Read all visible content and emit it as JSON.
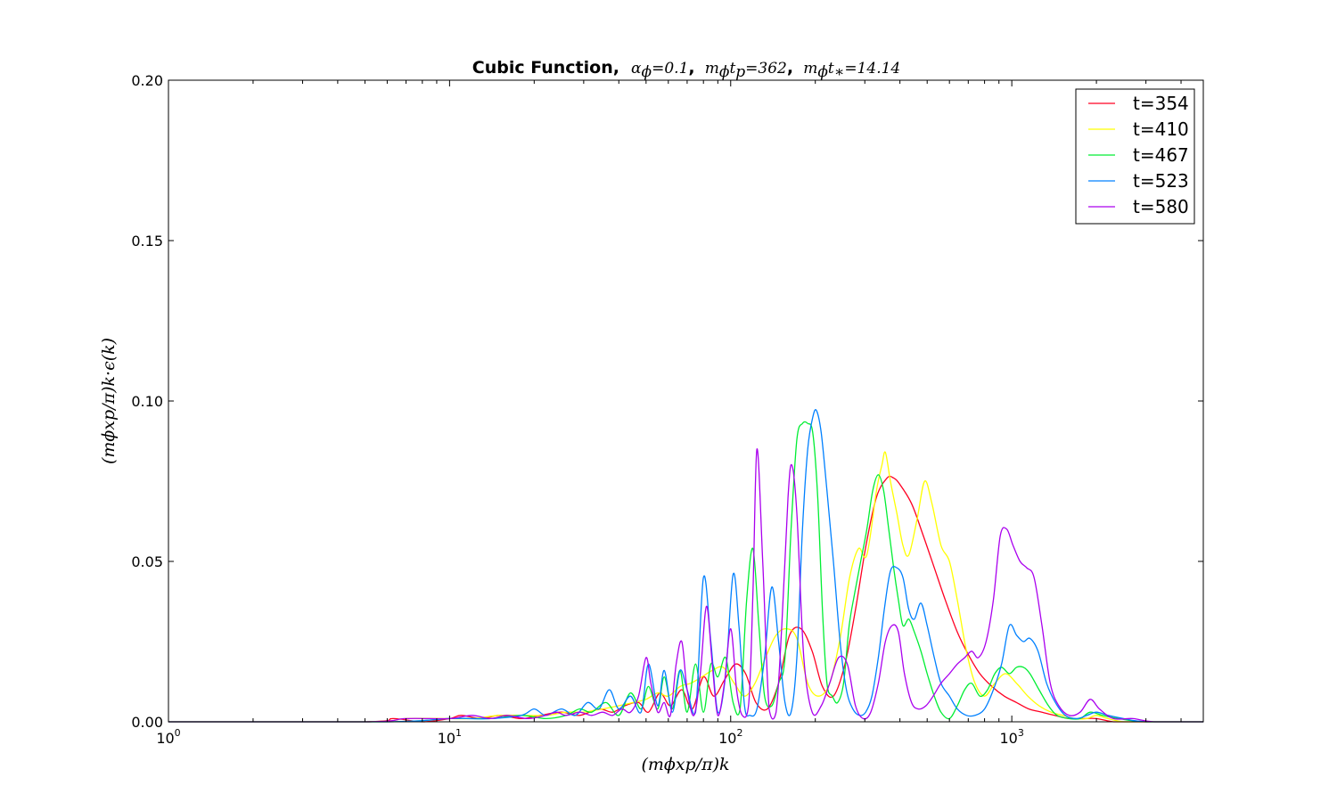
{
  "chart_data": {
    "type": "line",
    "title": {
      "bold": "Cubic Function,",
      "parts": [
        "α",
        "ϕ",
        "=0.1",
        "m",
        "ϕ",
        "t",
        "p",
        "=362",
        "m",
        "ϕ",
        "t",
        "∗",
        "=14.14"
      ]
    },
    "xlabel": "(mϕxp/π)k",
    "ylabel": "(mϕxp/π)k·ϵ(k)",
    "xscale": "log",
    "xlim": [
      1,
      4800
    ],
    "ylim": [
      0,
      0.2
    ],
    "xticks": [
      1,
      10,
      100,
      1000
    ],
    "xtick_labels": [
      {
        "base": "10",
        "exp": "0"
      },
      {
        "base": "10",
        "exp": "1"
      },
      {
        "base": "10",
        "exp": "2"
      },
      {
        "base": "10",
        "exp": "3"
      }
    ],
    "yticks": [
      0,
      0.05,
      0.1,
      0.15,
      0.2
    ],
    "ytick_labels": [
      "0.00",
      "0.05",
      "0.10",
      "0.15",
      "0.20"
    ],
    "legend_position": "top-right",
    "grid": false,
    "series": [
      {
        "name": "t=354",
        "color": "#ff0022",
        "x": [
          1,
          5,
          6.3,
          8,
          10,
          11,
          13,
          15,
          18,
          21,
          25,
          29,
          34,
          38,
          42,
          47,
          51,
          56,
          61,
          67,
          73,
          80,
          87,
          95,
          104,
          113,
          123,
          135,
          148,
          162,
          178,
          195,
          212,
          232,
          255,
          278,
          303,
          330,
          360,
          380,
          400,
          440,
          480,
          530,
          580,
          640,
          700,
          770,
          850,
          940,
          1040,
          1150,
          1280,
          1420,
          1600,
          1800,
          2000,
          2300,
          2600,
          3000,
          3500,
          4100,
          4800
        ],
        "y": [
          0,
          0,
          0.001,
          0,
          0.001,
          0.002,
          0.001,
          0.002,
          0.001,
          0.002,
          0.003,
          0.002,
          0.004,
          0.003,
          0.005,
          0.006,
          0.003,
          0.009,
          0.005,
          0.01,
          0.004,
          0.014,
          0.008,
          0.013,
          0.018,
          0.015,
          0.006,
          0.004,
          0.012,
          0.027,
          0.029,
          0.022,
          0.011,
          0.008,
          0.018,
          0.035,
          0.055,
          0.07,
          0.076,
          0.076,
          0.074,
          0.068,
          0.059,
          0.048,
          0.038,
          0.028,
          0.021,
          0.015,
          0.011,
          0.008,
          0.006,
          0.004,
          0.003,
          0.002,
          0.001,
          0.001,
          0.001,
          0,
          0,
          0,
          0,
          0,
          0
        ]
      },
      {
        "name": "t=410",
        "color": "#ffff00",
        "x": [
          1,
          5,
          7,
          10,
          12,
          15,
          18,
          22,
          26,
          30,
          35,
          40,
          45,
          50,
          55,
          60,
          66,
          72,
          79,
          86,
          94,
          103,
          112,
          122,
          133,
          145,
          158,
          172,
          188,
          205,
          225,
          245,
          265,
          285,
          305,
          330,
          345,
          355,
          370,
          390,
          410,
          430,
          460,
          490,
          520,
          560,
          600,
          640,
          690,
          740,
          800,
          870,
          950,
          1040,
          1140,
          1250,
          1380,
          1520,
          1680,
          1850,
          2000,
          2200,
          2500,
          3000,
          4800
        ],
        "y": [
          0,
          0,
          0.001,
          0.001,
          0.001,
          0.002,
          0.002,
          0.002,
          0.003,
          0.003,
          0.004,
          0.005,
          0.006,
          0.007,
          0.009,
          0.008,
          0.011,
          0.012,
          0.014,
          0.016,
          0.017,
          0.012,
          0.008,
          0.012,
          0.02,
          0.027,
          0.029,
          0.026,
          0.012,
          0.008,
          0.012,
          0.026,
          0.045,
          0.054,
          0.052,
          0.072,
          0.08,
          0.084,
          0.075,
          0.065,
          0.055,
          0.052,
          0.063,
          0.075,
          0.068,
          0.055,
          0.05,
          0.038,
          0.022,
          0.012,
          0.008,
          0.012,
          0.015,
          0.012,
          0.008,
          0.005,
          0.003,
          0.002,
          0.001,
          0.001,
          0.002,
          0.001,
          0,
          0,
          0
        ]
      },
      {
        "name": "t=467",
        "color": "#00ee33",
        "x": [
          1,
          6,
          10,
          14,
          18,
          22,
          26,
          29,
          32,
          36,
          40,
          44,
          48,
          51,
          55,
          58,
          62,
          66,
          70,
          75,
          80,
          85,
          90,
          96,
          102,
          108,
          114,
          120,
          126,
          132,
          140,
          148,
          156,
          164,
          172,
          180,
          188,
          196,
          204,
          212,
          220,
          230,
          240,
          252,
          264,
          276,
          290,
          305,
          320,
          335,
          350,
          365,
          380,
          395,
          410,
          430,
          450,
          475,
          500,
          530,
          560,
          600,
          640,
          680,
          720,
          770,
          820,
          870,
          920,
          980,
          1040,
          1100,
          1160,
          1250,
          1350,
          1450,
          1600,
          1750,
          1900,
          2100,
          2400,
          3000,
          4800
        ],
        "y": [
          0,
          0,
          0.001,
          0.001,
          0.002,
          0.001,
          0.002,
          0.004,
          0.003,
          0.006,
          0.002,
          0.009,
          0.004,
          0.011,
          0.004,
          0.014,
          0.004,
          0.016,
          0.003,
          0.018,
          0.003,
          0.018,
          0.014,
          0.02,
          0.006,
          0.004,
          0.038,
          0.054,
          0.03,
          0.008,
          0.005,
          0.012,
          0.02,
          0.06,
          0.088,
          0.093,
          0.093,
          0.09,
          0.07,
          0.035,
          0.012,
          0.008,
          0.006,
          0.012,
          0.03,
          0.04,
          0.05,
          0.06,
          0.072,
          0.077,
          0.072,
          0.06,
          0.048,
          0.038,
          0.03,
          0.032,
          0.028,
          0.022,
          0.015,
          0.008,
          0.003,
          0.001,
          0.005,
          0.01,
          0.012,
          0.008,
          0.01,
          0.015,
          0.017,
          0.015,
          0.017,
          0.017,
          0.015,
          0.01,
          0.005,
          0.002,
          0.001,
          0.001,
          0.003,
          0.002,
          0.001,
          0,
          0
        ]
      },
      {
        "name": "t=523",
        "color": "#0080ff",
        "x": [
          1,
          6,
          10,
          14,
          18,
          20,
          22,
          25,
          28,
          31,
          34,
          37,
          40,
          44,
          48,
          51,
          55,
          58,
          62,
          66,
          70,
          75,
          80,
          85,
          90,
          96,
          102,
          107,
          112,
          117,
          124,
          132,
          140,
          148,
          156,
          164,
          172,
          180,
          188,
          196,
          202,
          210,
          220,
          232,
          245,
          258,
          272,
          287,
          302,
          318,
          335,
          352,
          370,
          390,
          410,
          430,
          450,
          475,
          500,
          530,
          560,
          600,
          640,
          690,
          740,
          800,
          860,
          920,
          980,
          1040,
          1100,
          1160,
          1240,
          1330,
          1430,
          1550,
          1700,
          1850,
          2000,
          2200,
          2500,
          3000,
          4800
        ],
        "y": [
          0,
          0,
          0.001,
          0.001,
          0.002,
          0.004,
          0.002,
          0.004,
          0.002,
          0.006,
          0.004,
          0.01,
          0.004,
          0.008,
          0.003,
          0.018,
          0.005,
          0.016,
          0.003,
          0.016,
          0.01,
          0.003,
          0.045,
          0.025,
          0.003,
          0.015,
          0.046,
          0.03,
          0.005,
          0.002,
          0.004,
          0.02,
          0.042,
          0.025,
          0.006,
          0.003,
          0.02,
          0.06,
          0.085,
          0.095,
          0.097,
          0.09,
          0.072,
          0.05,
          0.025,
          0.01,
          0.004,
          0.002,
          0.003,
          0.008,
          0.02,
          0.035,
          0.047,
          0.048,
          0.045,
          0.035,
          0.032,
          0.037,
          0.03,
          0.02,
          0.012,
          0.008,
          0.004,
          0.002,
          0.002,
          0.004,
          0.01,
          0.018,
          0.03,
          0.027,
          0.025,
          0.026,
          0.022,
          0.012,
          0.006,
          0.002,
          0.001,
          0.002,
          0.003,
          0.002,
          0.001,
          0,
          0
        ]
      },
      {
        "name": "t=580",
        "color": "#aa00ee",
        "x": [
          1,
          5,
          7,
          10,
          12,
          14,
          16,
          19,
          22,
          24,
          26,
          29,
          32,
          35,
          38,
          41,
          44,
          47,
          50,
          52,
          55,
          58,
          61,
          64,
          67,
          70,
          74,
          78,
          82,
          86,
          90,
          95,
          100,
          105,
          110,
          116,
          120,
          124,
          130,
          137,
          145,
          152,
          160,
          165,
          172,
          182,
          195,
          210,
          225,
          242,
          260,
          278,
          296,
          315,
          335,
          355,
          375,
          395,
          415,
          440,
          465,
          495,
          525,
          560,
          600,
          640,
          680,
          720,
          760,
          810,
          860,
          910,
          960,
          1010,
          1070,
          1130,
          1200,
          1280,
          1370,
          1470,
          1600,
          1750,
          1900,
          2050,
          2300,
          2700,
          3200,
          4800
        ],
        "y": [
          0,
          0,
          0.001,
          0.001,
          0.002,
          0.001,
          0.002,
          0.001,
          0.002,
          0.003,
          0.002,
          0.003,
          0.002,
          0.003,
          0.002,
          0.004,
          0.003,
          0.008,
          0.02,
          0.012,
          0.003,
          0.006,
          0.002,
          0.018,
          0.025,
          0.01,
          0.002,
          0.015,
          0.036,
          0.018,
          0.002,
          0.012,
          0.029,
          0.01,
          0.002,
          0.006,
          0.04,
          0.085,
          0.05,
          0.004,
          0.003,
          0.03,
          0.07,
          0.08,
          0.065,
          0.02,
          0.003,
          0.005,
          0.012,
          0.02,
          0.018,
          0.005,
          0.001,
          0.003,
          0.012,
          0.025,
          0.03,
          0.028,
          0.015,
          0.006,
          0.004,
          0.005,
          0.008,
          0.012,
          0.015,
          0.018,
          0.02,
          0.022,
          0.02,
          0.025,
          0.038,
          0.058,
          0.06,
          0.055,
          0.05,
          0.048,
          0.045,
          0.03,
          0.012,
          0.005,
          0.002,
          0.003,
          0.007,
          0.004,
          0.001,
          0.001,
          0,
          0
        ]
      }
    ]
  }
}
